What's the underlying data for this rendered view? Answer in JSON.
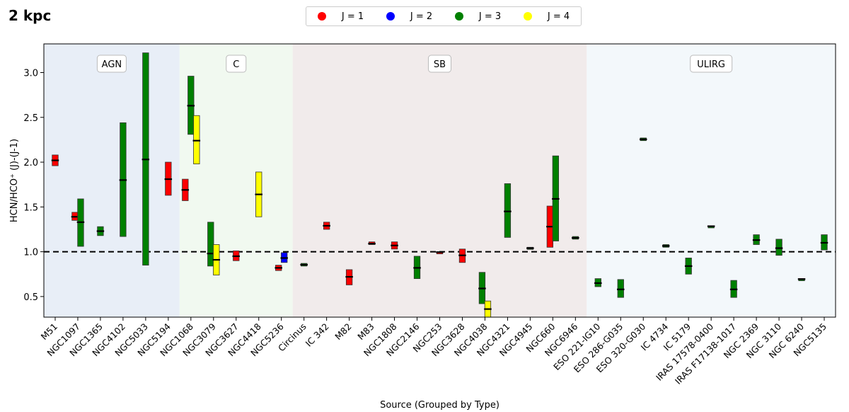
{
  "corner_label": "2 kpc",
  "legend": [
    {
      "label": "J = 1",
      "color": "#ff0000"
    },
    {
      "label": "J = 2",
      "color": "#0000ff"
    },
    {
      "label": "J = 3",
      "color": "#008000"
    },
    {
      "label": "J = 4",
      "color": "#ffff00"
    }
  ],
  "chart_data": {
    "type": "range-bar",
    "title": "",
    "xlabel": "Source (Grouped by Type)",
    "ylabel": "HCN/HCO⁺ (J)-(J-1)",
    "ylim": [
      0.27,
      3.32
    ],
    "yticks": [
      0.5,
      1.0,
      1.5,
      2.0,
      2.5,
      3.0
    ],
    "ytick_labels": [
      "0.5",
      "1.0",
      "1.5",
      "2.0",
      "2.5",
      "3.0"
    ],
    "reference_line": 1.0,
    "categories": [
      "M51",
      "NGC1097",
      "NGC1365",
      "NGC4102",
      "NGC5033",
      "NGC5194",
      "NGC1068",
      "NGC3079",
      "NGC3627",
      "NGC4418",
      "NGC5236",
      "Circinus",
      "IC 342",
      "M82",
      "M83",
      "NGC1808",
      "NGC2146",
      "NGC253",
      "NGC3628",
      "NGC4038",
      "NGC4321",
      "NGC4945",
      "NGC660",
      "NGC6946",
      "ESO 221-IG10",
      "ESO 286-G035",
      "ESO 320-G030",
      "IC 4734",
      "IC 5179",
      "IRAS 17578-0400",
      "IRAS F17138-1017",
      "NGC 2369",
      "NGC 3110",
      "NGC 6240",
      "NGC5135"
    ],
    "groups": [
      {
        "label": "AGN",
        "start": 0,
        "end": 5,
        "color": "#e8eef7"
      },
      {
        "label": "C",
        "start": 6,
        "end": 10,
        "color": "#f1f9f0"
      },
      {
        "label": "SB",
        "start": 11,
        "end": 23,
        "color": "#f1ebeb"
      },
      {
        "label": "ULIRG",
        "start": 24,
        "end": 34,
        "color": "#f3f8fb"
      }
    ],
    "series": [
      {
        "name": "J = 1",
        "color": "#ff0000",
        "points": [
          {
            "cat": 0,
            "low": 1.96,
            "high": 2.08,
            "median": 2.02
          },
          {
            "cat": 1,
            "low": 1.35,
            "high": 1.44,
            "median": 1.39
          },
          {
            "cat": 5,
            "low": 1.63,
            "high": 2.0,
            "median": 1.81
          },
          {
            "cat": 6,
            "low": 1.57,
            "high": 1.81,
            "median": 1.69
          },
          {
            "cat": 8,
            "low": 0.9,
            "high": 1.01,
            "median": 0.95
          },
          {
            "cat": 10,
            "low": 0.79,
            "high": 0.85,
            "median": 0.82
          },
          {
            "cat": 12,
            "low": 1.25,
            "high": 1.33,
            "median": 1.29
          },
          {
            "cat": 13,
            "low": 0.63,
            "high": 0.8,
            "median": 0.72
          },
          {
            "cat": 14,
            "low": 1.08,
            "high": 1.11,
            "median": 1.09
          },
          {
            "cat": 15,
            "low": 1.03,
            "high": 1.11,
            "median": 1.07
          },
          {
            "cat": 17,
            "low": 0.99,
            "high": 1.0,
            "median": 0.995
          },
          {
            "cat": 18,
            "low": 0.88,
            "high": 1.03,
            "median": 0.96
          },
          {
            "cat": 22,
            "low": 1.05,
            "high": 1.51,
            "median": 1.28
          }
        ]
      },
      {
        "name": "J = 2",
        "color": "#0000ff",
        "points": [
          {
            "cat": 10,
            "low": 0.88,
            "high": 0.99,
            "median": 0.93
          }
        ]
      },
      {
        "name": "J = 3",
        "color": "#008000",
        "points": [
          {
            "cat": 1,
            "low": 1.06,
            "high": 1.59,
            "median": 1.33
          },
          {
            "cat": 2,
            "low": 1.18,
            "high": 1.28,
            "median": 1.23
          },
          {
            "cat": 3,
            "low": 1.17,
            "high": 2.44,
            "median": 1.8
          },
          {
            "cat": 4,
            "low": 0.85,
            "high": 3.22,
            "median": 2.03
          },
          {
            "cat": 6,
            "low": 2.31,
            "high": 2.96,
            "median": 2.63
          },
          {
            "cat": 7,
            "low": 0.84,
            "high": 1.33,
            "median": 0.98
          },
          {
            "cat": 11,
            "low": 0.84,
            "high": 0.87,
            "median": 0.855
          },
          {
            "cat": 16,
            "low": 0.7,
            "high": 0.95,
            "median": 0.82
          },
          {
            "cat": 19,
            "low": 0.42,
            "high": 0.77,
            "median": 0.59
          },
          {
            "cat": 20,
            "low": 1.16,
            "high": 1.76,
            "median": 1.45
          },
          {
            "cat": 21,
            "low": 1.03,
            "high": 1.05,
            "median": 1.04
          },
          {
            "cat": 22,
            "low": 1.12,
            "high": 2.07,
            "median": 1.59
          },
          {
            "cat": 23,
            "low": 1.14,
            "high": 1.17,
            "median": 1.155
          },
          {
            "cat": 24,
            "low": 0.61,
            "high": 0.7,
            "median": 0.65
          },
          {
            "cat": 25,
            "low": 0.49,
            "high": 0.69,
            "median": 0.58
          },
          {
            "cat": 26,
            "low": 2.24,
            "high": 2.27,
            "median": 2.255
          },
          {
            "cat": 27,
            "low": 1.05,
            "high": 1.08,
            "median": 1.065
          },
          {
            "cat": 28,
            "low": 0.75,
            "high": 0.93,
            "median": 0.84
          },
          {
            "cat": 29,
            "low": 1.28,
            "high": 1.29,
            "median": 1.285
          },
          {
            "cat": 30,
            "low": 0.49,
            "high": 0.68,
            "median": 0.58
          },
          {
            "cat": 31,
            "low": 1.08,
            "high": 1.19,
            "median": 1.13
          },
          {
            "cat": 32,
            "low": 0.96,
            "high": 1.14,
            "median": 1.04
          },
          {
            "cat": 33,
            "low": 0.69,
            "high": 0.7,
            "median": 0.695
          },
          {
            "cat": 34,
            "low": 1.02,
            "high": 1.19,
            "median": 1.1
          }
        ]
      },
      {
        "name": "J = 4",
        "color": "#ffff00",
        "points": [
          {
            "cat": 6,
            "low": 1.98,
            "high": 2.52,
            "median": 2.24
          },
          {
            "cat": 7,
            "low": 0.74,
            "high": 1.08,
            "median": 0.91
          },
          {
            "cat": 9,
            "low": 1.39,
            "high": 1.89,
            "median": 1.64
          },
          {
            "cat": 19,
            "low": 0.24,
            "high": 0.45,
            "median": 0.36
          }
        ]
      }
    ]
  }
}
